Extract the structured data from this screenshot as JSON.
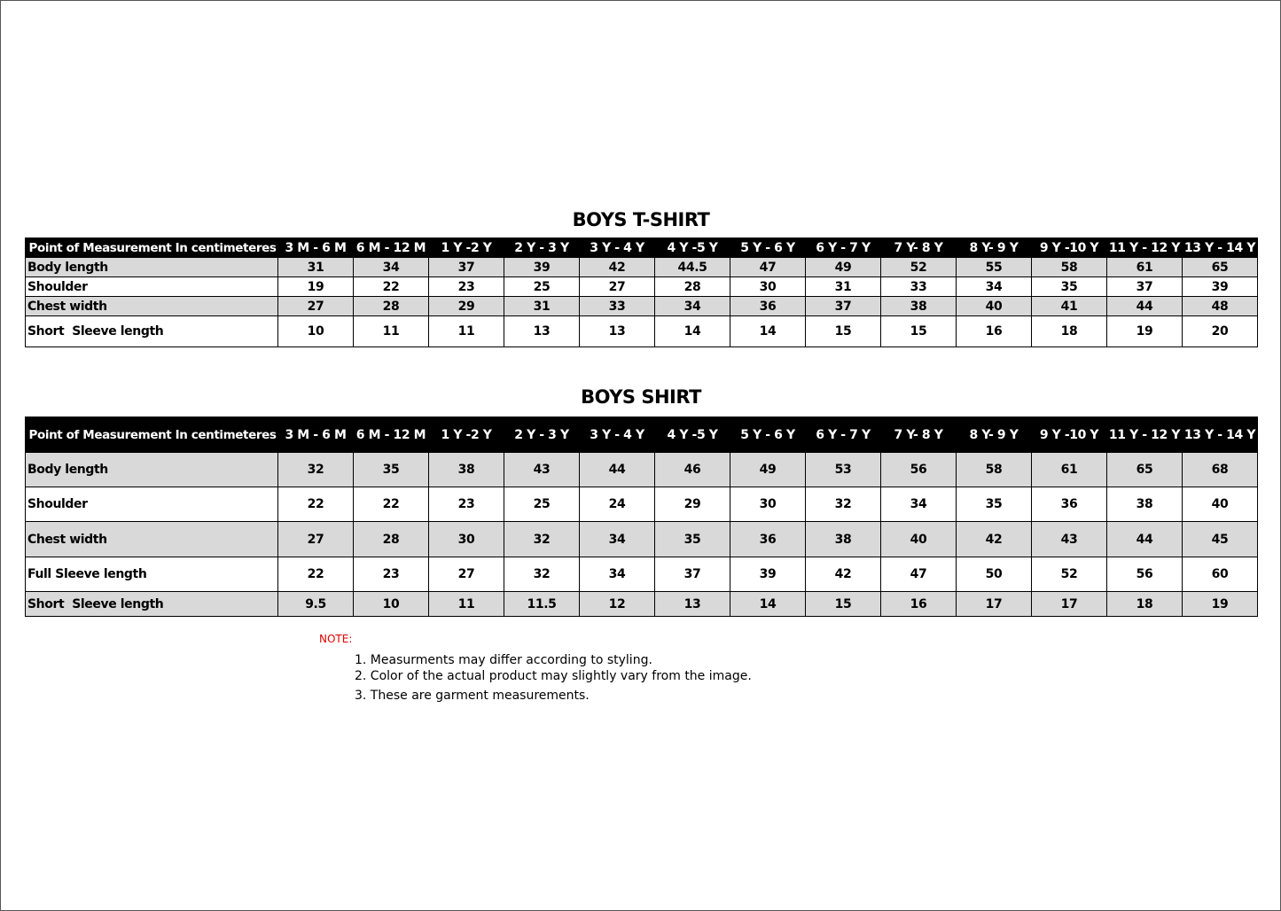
{
  "tables": [
    {
      "title": "BOYS T-SHIRT",
      "header": [
        "Point of Measurement In centimeteres",
        "3 M - 6 M",
        "6 M - 12 M",
        "1 Y -2 Y",
        "2 Y - 3 Y",
        "3 Y - 4 Y",
        "4 Y -5 Y",
        "5 Y - 6 Y",
        "6 Y - 7 Y",
        "7 Y- 8 Y",
        "8 Y- 9 Y",
        "9 Y -10 Y",
        "11 Y - 12 Y",
        "13 Y - 14 Y"
      ],
      "rows": [
        [
          "Body length",
          31,
          34,
          37,
          39,
          42,
          44.5,
          47,
          49,
          52,
          55,
          58,
          61,
          65
        ],
        [
          "Shoulder",
          19,
          22,
          23,
          25,
          27,
          28,
          30,
          31,
          33,
          34,
          35,
          37,
          39
        ],
        [
          "Chest width",
          27,
          28,
          29,
          31,
          33,
          34,
          36,
          37,
          38,
          40,
          41,
          44,
          48
        ],
        [
          "Short  Sleeve length",
          10,
          11,
          11,
          13,
          13,
          14,
          14,
          15,
          15,
          16,
          18,
          19,
          20
        ]
      ]
    },
    {
      "title": "BOYS SHIRT",
      "header": [
        "Point of Measurement In centimeteres",
        "3 M - 6 M",
        "6 M - 12 M",
        "1 Y -2 Y",
        "2 Y - 3 Y",
        "3 Y - 4 Y",
        "4 Y -5 Y",
        "5 Y - 6 Y",
        "6 Y - 7 Y",
        "7 Y- 8 Y",
        "8 Y- 9 Y",
        "9 Y -10 Y",
        "11 Y - 12 Y",
        "13 Y - 14 Y"
      ],
      "rows": [
        [
          "Body length",
          32,
          35,
          38,
          43,
          44,
          46,
          49,
          53,
          56,
          58,
          61,
          65,
          68
        ],
        [
          "Shoulder",
          22,
          22,
          23,
          25,
          24,
          29,
          30,
          32,
          34,
          35,
          36,
          38,
          40
        ],
        [
          "Chest width",
          27,
          28,
          30,
          32,
          34,
          35,
          36,
          38,
          40,
          42,
          43,
          44,
          45
        ],
        [
          "Full Sleeve length",
          22,
          23,
          27,
          32,
          34,
          37,
          39,
          42,
          47,
          50,
          52,
          56,
          60
        ],
        [
          "Short  Sleeve length",
          9.5,
          10,
          11,
          11.5,
          12,
          13,
          14,
          15,
          16,
          17,
          17,
          18,
          19
        ]
      ]
    }
  ],
  "note": {
    "label": "NOTE:",
    "items": [
      "1. Measurments may differ according to styling.",
      "2. Color of the actual product may slightly vary from the image.",
      "3. These are garment measurements."
    ]
  }
}
